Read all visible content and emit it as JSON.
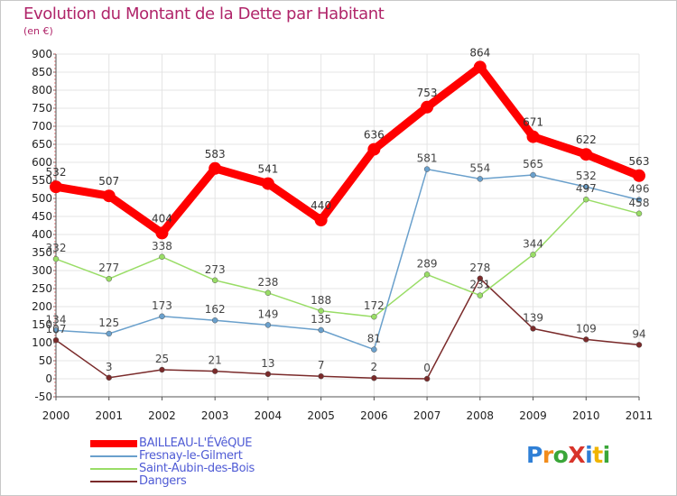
{
  "title": "Evolution du Montant de la Dette par Habitant",
  "subtitle": "(en €)",
  "logo": {
    "text": "ProXiti",
    "letter_colors": [
      "#2f7fd6",
      "#f28c1c",
      "#3aa639",
      "#d8342a",
      "#2f7fd6",
      "#f0b400",
      "#3aa639"
    ]
  },
  "chart_data": {
    "type": "line",
    "x": [
      "2000",
      "2001",
      "2002",
      "2003",
      "2004",
      "2005",
      "2006",
      "2007",
      "2008",
      "2009",
      "2010",
      "2011"
    ],
    "ylim": [
      -50,
      900
    ],
    "yticks": [
      -50,
      0,
      50,
      100,
      150,
      200,
      250,
      300,
      350,
      400,
      450,
      500,
      550,
      600,
      650,
      700,
      750,
      800,
      850,
      900
    ],
    "grid": true,
    "legend_position": "bottom-left",
    "series": [
      {
        "name": "BAILLEAU-L'ÉVêQUE",
        "color": "#ff0000",
        "width": 9,
        "marker": 7,
        "label_color": "#333333",
        "values": [
          532,
          507,
          404,
          583,
          541,
          440,
          636,
          753,
          864,
          671,
          622,
          563
        ],
        "labels": [
          "532",
          "507",
          "404",
          "583",
          "541",
          "440",
          "636",
          "753",
          "864",
          "671",
          "622",
          "563"
        ]
      },
      {
        "name": "Fresnay-le-Gilmert",
        "color": "#6aa0cc",
        "width": 1.5,
        "marker": 3,
        "label_color": "#444444",
        "values": [
          134,
          125,
          173,
          162,
          149,
          135,
          81,
          581,
          554,
          565,
          532,
          496
        ],
        "labels": [
          "134",
          "125",
          "173",
          "162",
          "149",
          "135",
          "81",
          "581",
          "554",
          "565",
          "532",
          "496"
        ]
      },
      {
        "name": "Saint-Aubin-des-Bois",
        "color": "#99dd66",
        "width": 1.5,
        "marker": 3,
        "label_color": "#444444",
        "values": [
          332,
          277,
          338,
          273,
          238,
          188,
          172,
          289,
          231,
          344,
          497,
          458
        ],
        "labels": [
          "332",
          "277",
          "338",
          "273",
          "238",
          "188",
          "172",
          "289",
          "231",
          "344",
          "497",
          "458"
        ]
      },
      {
        "name": "Dangers",
        "color": "#7a2a2a",
        "width": 1.5,
        "marker": 3,
        "label_color": "#444444",
        "values": [
          107,
          3,
          25,
          21,
          13,
          7,
          2,
          0,
          278,
          139,
          109,
          94
        ],
        "labels": [
          "107",
          "3",
          "25",
          "21",
          "13",
          "7",
          "2",
          "0",
          "278",
          "139",
          "109",
          "94"
        ]
      }
    ]
  }
}
